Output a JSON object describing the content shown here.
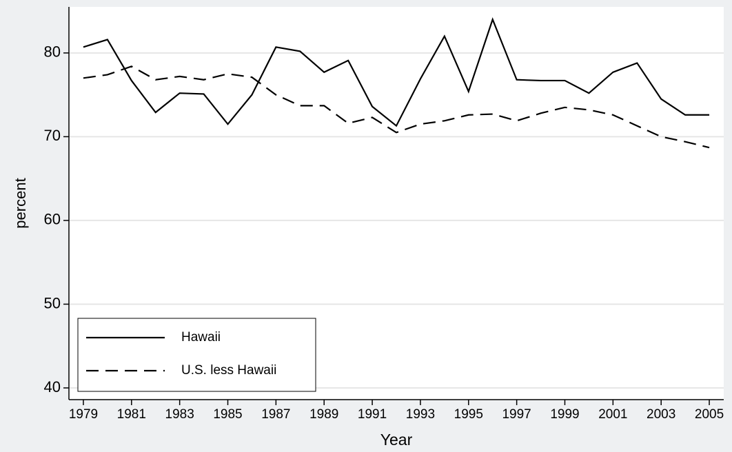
{
  "chart_data": {
    "type": "line",
    "x_label": "Year",
    "y_label": "percent",
    "x": [
      1979,
      1980,
      1981,
      1982,
      1983,
      1984,
      1985,
      1986,
      1987,
      1988,
      1989,
      1990,
      1991,
      1992,
      1993,
      1994,
      1995,
      1996,
      1997,
      1998,
      1999,
      2000,
      2001,
      2002,
      2003,
      2004,
      2005
    ],
    "series": [
      {
        "name": "Hawaii",
        "color": "#000000",
        "dash": "solid",
        "values": [
          80.7,
          81.6,
          76.7,
          72.9,
          75.2,
          75.1,
          71.5,
          75.0,
          80.7,
          80.2,
          77.7,
          79.1,
          73.6,
          71.3,
          76.9,
          82.0,
          75.4,
          84.0,
          76.8,
          76.7,
          76.7,
          75.2,
          77.7,
          78.8,
          74.5,
          72.6,
          72.6
        ]
      },
      {
        "name": "U.S. less Hawaii",
        "color": "#000000",
        "dash": "dashed",
        "values": [
          77.0,
          77.4,
          78.4,
          76.8,
          77.2,
          76.8,
          77.5,
          77.1,
          75.0,
          73.7,
          73.7,
          71.6,
          72.3,
          70.5,
          71.5,
          71.9,
          72.6,
          72.7,
          71.9,
          72.8,
          73.5,
          73.2,
          72.6,
          71.3,
          70.0,
          69.4,
          68.7
        ]
      }
    ],
    "xlim": [
      1978.4,
      2005.6
    ],
    "ylim": [
      38.6,
      85.5
    ],
    "xticks": [
      1979,
      1981,
      1983,
      1985,
      1987,
      1989,
      1991,
      1993,
      1995,
      1997,
      1999,
      2001,
      2003,
      2005
    ],
    "yticks": [
      40,
      50,
      60,
      70,
      80
    ],
    "grid": true,
    "legend": "bottom-left"
  }
}
